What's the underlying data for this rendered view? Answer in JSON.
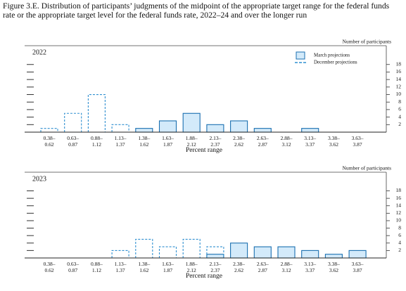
{
  "title": "Figure 3.E. Distribution of participants’ judgments of the midpoint of the appropriate target range for the federal funds rate or the appropriate target level for the federal funds rate, 2022–24 and over the longer run",
  "chart_data": [
    {
      "type": "bar",
      "title": "2022",
      "x_label": "Percent range",
      "y_label": "Number of participants",
      "categories": [
        "0.38–0.62",
        "0.63–0.87",
        "0.88–1.12",
        "1.13–1.37",
        "1.38–1.62",
        "1.63–1.87",
        "1.88–2.12",
        "2.13–2.37",
        "2.38–2.62",
        "2.63–2.87",
        "2.88–3.12",
        "3.13–3.37",
        "3.38–3.62",
        "3.63–3.87"
      ],
      "series": [
        {
          "name": "March projections",
          "color": "#1a6fb0",
          "fill": "#d3eafa",
          "style": "solid",
          "values": [
            0,
            0,
            0,
            0,
            1,
            3,
            5,
            2,
            3,
            1,
            0,
            1,
            0,
            0
          ]
        },
        {
          "name": "December projections",
          "color": "#2f8fd0",
          "style": "dashed",
          "values": [
            1,
            5,
            10,
            2,
            0,
            0,
            0,
            0,
            0,
            0,
            0,
            0,
            0,
            0
          ]
        }
      ],
      "ylim": [
        0,
        23
      ],
      "yticks": [
        2,
        4,
        6,
        8,
        10,
        12,
        14,
        16,
        18
      ],
      "legend": "upper right"
    },
    {
      "type": "bar",
      "title": "2023",
      "x_label": "Percent range",
      "y_label": "Number of participants",
      "categories": [
        "0.38–0.62",
        "0.63–0.87",
        "0.88–1.12",
        "1.13–1.37",
        "1.38–1.62",
        "1.63–1.87",
        "1.88–2.12",
        "2.13–2.37",
        "2.38–2.62",
        "2.63–2.87",
        "2.88–3.12",
        "3.13–3.37",
        "3.38–3.62",
        "3.63–3.87"
      ],
      "series": [
        {
          "name": "March projections",
          "color": "#1a6fb0",
          "fill": "#d3eafa",
          "style": "solid",
          "values": [
            0,
            0,
            0,
            0,
            0,
            0,
            0,
            1,
            4,
            3,
            3,
            2,
            1,
            2
          ]
        },
        {
          "name": "December projections",
          "color": "#2f8fd0",
          "style": "dashed",
          "values": [
            0,
            0,
            0,
            2,
            5,
            3,
            5,
            3,
            0,
            0,
            0,
            0,
            0,
            0
          ]
        }
      ],
      "ylim": [
        0,
        23
      ],
      "yticks": [
        2,
        4,
        6,
        8,
        10,
        12,
        14,
        16,
        18
      ]
    }
  ]
}
